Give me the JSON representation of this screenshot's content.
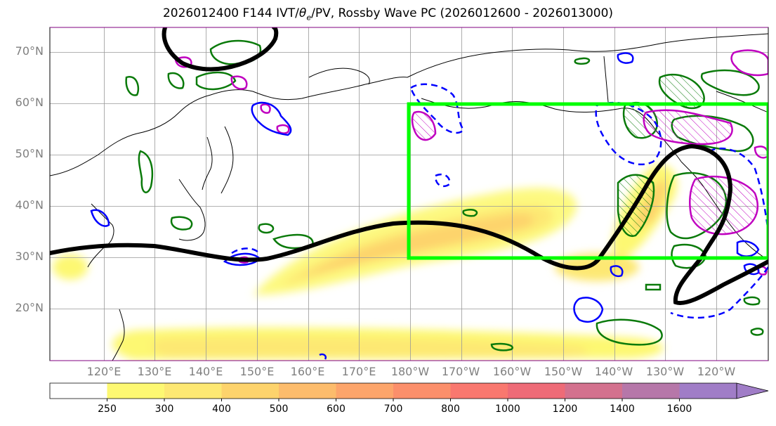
{
  "title": {
    "prefix": "2026012400 F144 IVT/",
    "theta": "θ",
    "sub": "e",
    "suffix": "/PV, Rossby Wave PC (2026012600 - 2026013000)"
  },
  "lat_labels": [
    "70°N",
    "60°N",
    "50°N",
    "40°N",
    "30°N",
    "20°N"
  ],
  "lon_labels": [
    "120°E",
    "130°E",
    "140°E",
    "150°E",
    "160°E",
    "170°E",
    "180°W",
    "170°W",
    "160°W",
    "150°W",
    "140°W",
    "130°W",
    "120°W"
  ],
  "colorbar": {
    "levels": [
      "250",
      "300",
      "400",
      "500",
      "600",
      "700",
      "800",
      "1000",
      "1200",
      "1400",
      "1600"
    ],
    "colors": [
      "#ffffff",
      "#fdf872",
      "#fde873",
      "#fdd36c",
      "#fcbc6c",
      "#fca56b",
      "#fb8f6b",
      "#f9786f",
      "#ee6b77",
      "#d3718e",
      "#b677a9",
      "#a07dc7"
    ]
  },
  "colors": {
    "ivt_shading": "#fdd36c",
    "rossby_box": "#00ff00",
    "pv_contour": "#000000",
    "theta_e_green": "#0a7a0a",
    "blue_contour": "#0000ff",
    "magenta_contour": "#c000c0",
    "coastline": "#000000"
  }
}
